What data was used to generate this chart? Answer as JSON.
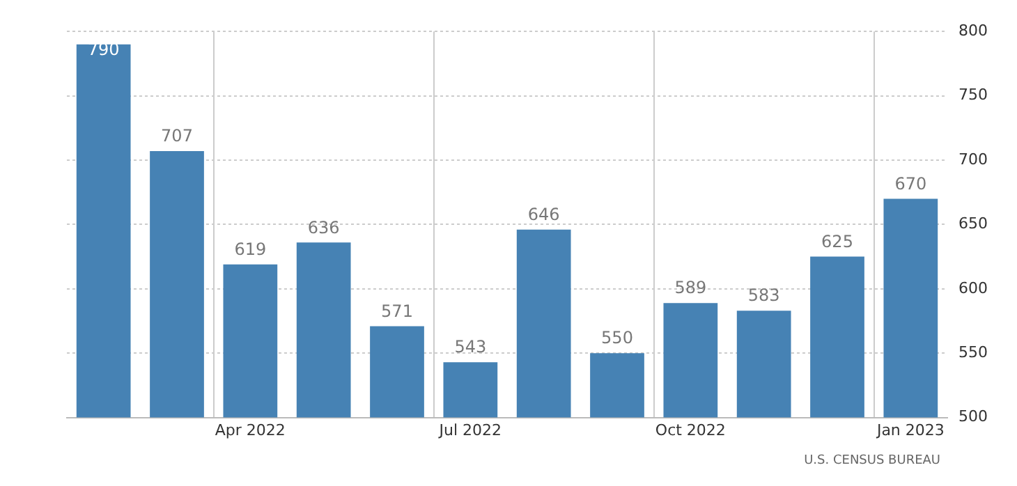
{
  "chart_data": {
    "type": "bar",
    "categories": [
      null,
      null,
      "Apr 2022",
      null,
      null,
      "Jul 2022",
      null,
      null,
      "Oct 2022",
      null,
      null,
      "Jan 2023"
    ],
    "values": [
      790,
      707,
      619,
      636,
      571,
      543,
      646,
      550,
      589,
      583,
      625,
      670
    ],
    "color": "#4682b4",
    "ylim": [
      500,
      800
    ],
    "yticks": [
      500,
      550,
      600,
      650,
      700,
      750,
      800
    ],
    "grid": true,
    "data_labels": true,
    "annotations": [
      "U.S. CENSUS BUREAU"
    ]
  }
}
